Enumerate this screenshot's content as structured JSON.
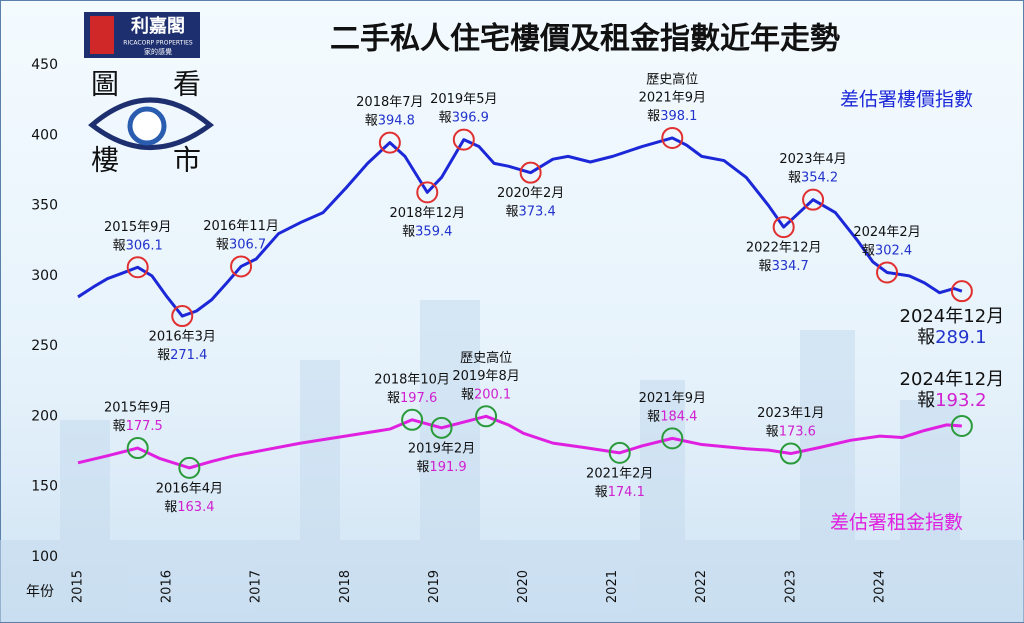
{
  "branding": {
    "company": "利嘉閣",
    "company_en": "RICACORP PROPERTIES",
    "slogan": "家的感覺",
    "badge": [
      "圖",
      "看",
      "樓",
      "市"
    ]
  },
  "chart_data": {
    "type": "line",
    "title": "二手私人住宅樓價及租金指數近年走勢",
    "x_label": "年份",
    "value_prefix": "報",
    "xlim": [
      2015,
      2025
    ],
    "xticks": [
      2015,
      2016,
      2017,
      2018,
      2019,
      2020,
      2021,
      2022,
      2023,
      2024
    ],
    "ylim": [
      100,
      450
    ],
    "yticks": [
      100,
      150,
      200,
      250,
      300,
      350,
      400,
      450
    ],
    "grid": false,
    "series": [
      {
        "name": "差估署樓價指數",
        "color": "#1c28d8",
        "label_color": "#2233cc",
        "marker_color": "#e03030",
        "x": [
          2015.0,
          2015.17,
          2015.33,
          2015.5,
          2015.67,
          2015.83,
          2016.0,
          2016.17,
          2016.33,
          2016.5,
          2016.67,
          2016.83,
          2017.0,
          2017.25,
          2017.5,
          2017.75,
          2018.0,
          2018.25,
          2018.5,
          2018.67,
          2018.92,
          2019.08,
          2019.33,
          2019.5,
          2019.67,
          2019.83,
          2020.08,
          2020.33,
          2020.5,
          2020.75,
          2021.0,
          2021.33,
          2021.67,
          2021.83,
          2022.0,
          2022.25,
          2022.5,
          2022.75,
          2022.92,
          2023.25,
          2023.5,
          2023.75,
          2023.92,
          2024.08,
          2024.33,
          2024.5,
          2024.67,
          2024.83,
          2024.92
        ],
        "values": [
          285,
          292,
          298,
          302,
          306.1,
          300,
          285,
          271.4,
          275,
          283,
          295,
          306.7,
          312,
          330,
          338,
          345,
          362,
          380,
          394.8,
          385,
          359.4,
          370,
          396.9,
          392,
          380,
          378,
          373.4,
          383,
          385,
          381,
          385,
          392,
          398.1,
          393,
          385,
          382,
          370,
          350,
          334.7,
          354.2,
          345,
          325,
          310,
          302.4,
          300,
          295,
          288,
          291,
          289.1
        ],
        "annotations": [
          {
            "date": "2015年9月",
            "x": 2015.67,
            "value": 306.1
          },
          {
            "date": "2016年3月",
            "x": 2016.17,
            "value": 271.4
          },
          {
            "date": "2016年11月",
            "x": 2016.83,
            "value": 306.7
          },
          {
            "date": "2018年7月",
            "x": 2018.5,
            "value": 394.8
          },
          {
            "date": "2018年12月",
            "x": 2018.92,
            "value": 359.4
          },
          {
            "date": "2019年5月",
            "x": 2019.33,
            "value": 396.9
          },
          {
            "date": "2020年2月",
            "x": 2020.08,
            "value": 373.4
          },
          {
            "date": "2021年9月",
            "x": 2021.67,
            "value": 398.1,
            "note": "歷史高位"
          },
          {
            "date": "2022年12月",
            "x": 2022.92,
            "value": 334.7
          },
          {
            "date": "2023年4月",
            "x": 2023.25,
            "value": 354.2
          },
          {
            "date": "2024年2月",
            "x": 2024.08,
            "value": 302.4
          },
          {
            "date": "2024年12月",
            "x": 2024.92,
            "value": 289.1
          }
        ]
      },
      {
        "name": "差估署租金指數",
        "color": "#e020e0",
        "label_color": "#d020d0",
        "marker_color": "#2a9a3a",
        "x": [
          2015.0,
          2015.33,
          2015.67,
          2015.92,
          2016.25,
          2016.5,
          2016.75,
          2017.0,
          2017.5,
          2018.0,
          2018.5,
          2018.75,
          2019.08,
          2019.58,
          2019.83,
          2020.0,
          2020.33,
          2020.67,
          2021.08,
          2021.33,
          2021.67,
          2022.0,
          2022.5,
          2022.75,
          2023.0,
          2023.33,
          2023.67,
          2024.0,
          2024.25,
          2024.5,
          2024.75,
          2024.92
        ],
        "values": [
          167,
          172,
          177.5,
          170,
          163.4,
          168,
          172,
          175,
          181,
          186,
          191,
          197.6,
          191.9,
          200.1,
          194,
          188,
          181,
          178,
          174.1,
          179,
          184.4,
          180,
          177,
          176,
          173.6,
          178,
          183,
          186,
          185,
          190,
          194,
          193.2
        ],
        "annotations": [
          {
            "date": "2015年9月",
            "x": 2015.67,
            "value": 177.5
          },
          {
            "date": "2016年4月",
            "x": 2016.25,
            "value": 163.4
          },
          {
            "date": "2018年10月",
            "x": 2018.75,
            "value": 197.6
          },
          {
            "date": "2019年2月",
            "x": 2019.08,
            "value": 191.9
          },
          {
            "date": "2019年8月",
            "x": 2019.58,
            "value": 200.1,
            "note": "歷史高位"
          },
          {
            "date": "2021年2月",
            "x": 2021.08,
            "value": 174.1
          },
          {
            "date": "2021年9月",
            "x": 2021.67,
            "value": 184.4
          },
          {
            "date": "2023年1月",
            "x": 2023.0,
            "value": 173.6
          },
          {
            "date": "2024年12月",
            "x": 2024.92,
            "value": 193.2
          }
        ]
      }
    ]
  }
}
